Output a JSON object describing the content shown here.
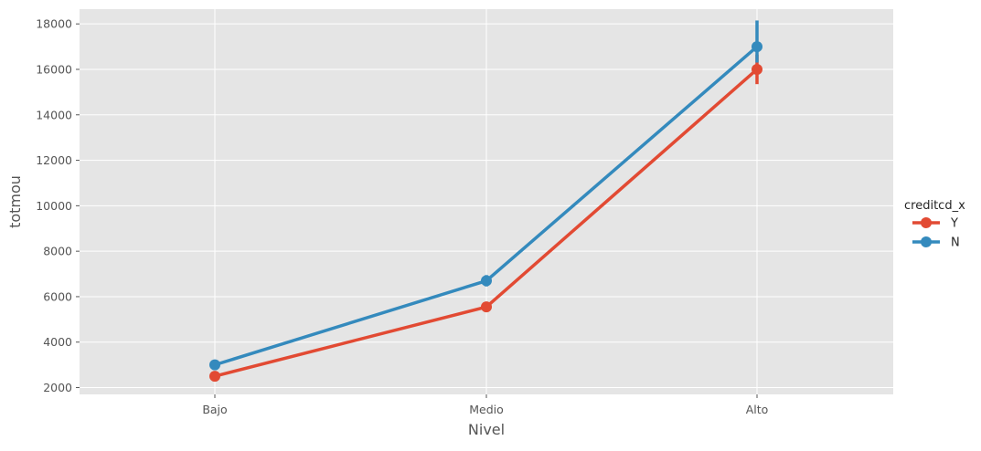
{
  "chart_data": {
    "type": "line",
    "title": "",
    "xlabel": "Nivel",
    "ylabel": "totmou",
    "categories": [
      "Bajo",
      "Medio",
      "Alto"
    ],
    "yticks": [
      2000,
      4000,
      6000,
      8000,
      10000,
      12000,
      14000,
      16000,
      18000
    ],
    "ylim": [
      1700,
      18650
    ],
    "grid": true,
    "legend": {
      "title": "creditcd_x",
      "placement": "right"
    },
    "series": [
      {
        "name": "Y",
        "color": "#E24A33",
        "values": [
          2500,
          5550,
          16000
        ],
        "ci_low": [
          2400,
          5450,
          15350
        ],
        "ci_high": [
          2600,
          5650,
          16650
        ]
      },
      {
        "name": "N",
        "color": "#348ABD",
        "values": [
          3000,
          6700,
          17000
        ],
        "ci_low": [
          2850,
          6450,
          16300
        ],
        "ci_high": [
          3150,
          6950,
          18150
        ]
      }
    ]
  }
}
